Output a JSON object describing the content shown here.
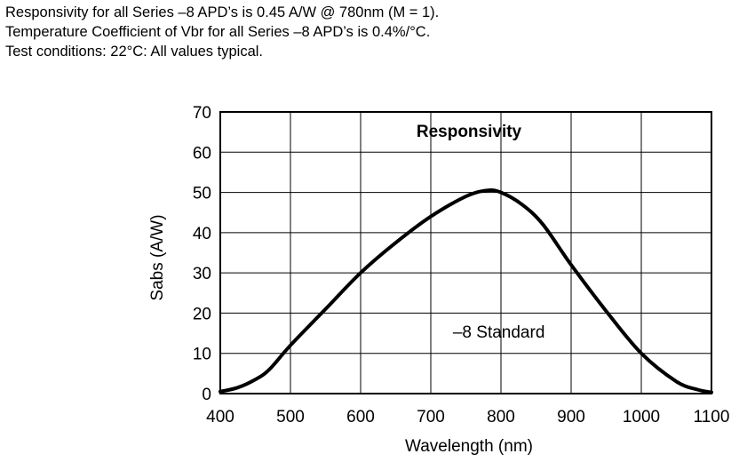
{
  "notes": [
    "Responsivity for all Series –8 APD’s is 0.45 A/W @ 780nm (M = 1).",
    "Temperature Coefficient of Vbr for all Series –8 APD’s is 0.4%/°C.",
    "Test conditions: 22°C: All values typical."
  ],
  "chart_data": {
    "type": "line",
    "title": "Responsivity",
    "xlabel": "Wavelength (nm)",
    "ylabel": "Sabs (A/W)",
    "xlim": [
      400,
      1100
    ],
    "ylim": [
      0,
      70
    ],
    "xticks": [
      400,
      500,
      600,
      700,
      800,
      900,
      1000,
      1100
    ],
    "yticks": [
      0,
      10,
      20,
      30,
      40,
      50,
      60,
      70
    ],
    "grid": true,
    "series": [
      {
        "name": "–8 Standard",
        "x": [
          400,
          425,
          450,
          470,
          500,
          550,
          600,
          650,
          700,
          750,
          780,
          800,
          830,
          860,
          900,
          950,
          1000,
          1050,
          1080,
          1100
        ],
        "y": [
          0.5,
          1.5,
          3.5,
          6,
          12,
          21,
          30,
          37.5,
          44,
          49,
          50.5,
          50,
          47,
          42,
          32,
          20.5,
          10,
          3,
          1,
          0.3
        ]
      }
    ],
    "annotations": [
      {
        "text": "–8 Standard",
        "x": 797,
        "y": 15.5
      }
    ]
  }
}
